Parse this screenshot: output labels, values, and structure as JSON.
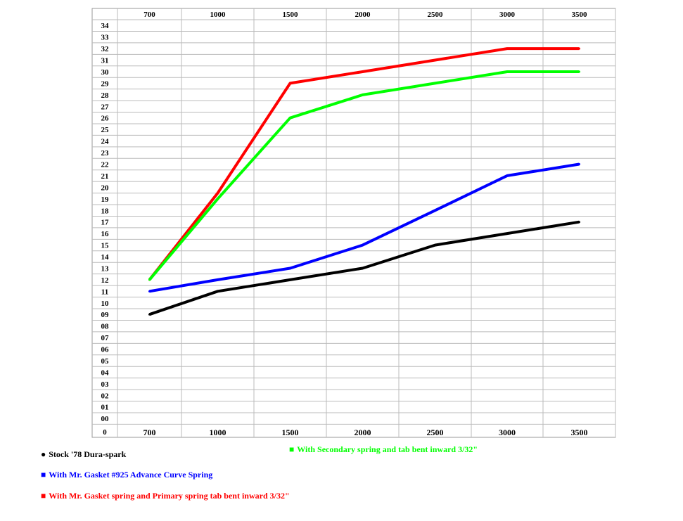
{
  "chart_data": {
    "type": "line",
    "categories": [
      "700",
      "1000",
      "1500",
      "2000",
      "2500",
      "3000",
      "3500"
    ],
    "x_values": [
      700,
      1000,
      1500,
      2000,
      2500,
      3000,
      3500
    ],
    "y_ticks": [
      "34",
      "33",
      "32",
      "31",
      "30",
      "29",
      "28",
      "27",
      "26",
      "25",
      "24",
      "23",
      "22",
      "21",
      "20",
      "19",
      "18",
      "17",
      "16",
      "15",
      "14",
      "13",
      "12",
      "11",
      "10",
      "09",
      "08",
      "07",
      "06",
      "05",
      "04",
      "03",
      "02",
      "01",
      "00"
    ],
    "corner_label": "0",
    "ylim": [
      0,
      34
    ],
    "grid": true,
    "series": [
      {
        "name": "Stock '78 Dura-spark",
        "color": "#000000",
        "values": [
          9,
          11,
          12,
          13,
          15,
          16,
          17
        ]
      },
      {
        "name": "With Mr. Gasket #925 Advance Curve Spring",
        "color": "#0000ff",
        "values": [
          11,
          12,
          13,
          15,
          18,
          21,
          22
        ]
      },
      {
        "name": "With Mr. Gasket spring and Primary spring tab bent inward 3/32\"",
        "color": "#ff0000",
        "values": [
          12,
          19.5,
          29,
          30,
          31,
          32,
          32
        ]
      },
      {
        "name": "With Secondary spring and tab bent inward 3/32\"",
        "color": "#00ff00",
        "values": [
          12,
          19,
          26,
          28,
          29,
          30,
          30
        ]
      }
    ]
  },
  "legend": {
    "stock": {
      "bullet": "●",
      "label": "Stock '78 Dura-spark",
      "color": "#000000"
    },
    "gasket": {
      "bullet": "■",
      "label": "With Mr. Gasket #925 Advance Curve Spring",
      "color": "#0000ff"
    },
    "primary": {
      "bullet": "■",
      "label": "With Mr. Gasket spring and Primary spring tab bent inward 3/32\"",
      "color": "#ff0000"
    },
    "secondary": {
      "bullet": "■",
      "label": "With Secondary spring and tab bent inward 3/32\"",
      "color": "#00ff00"
    }
  }
}
